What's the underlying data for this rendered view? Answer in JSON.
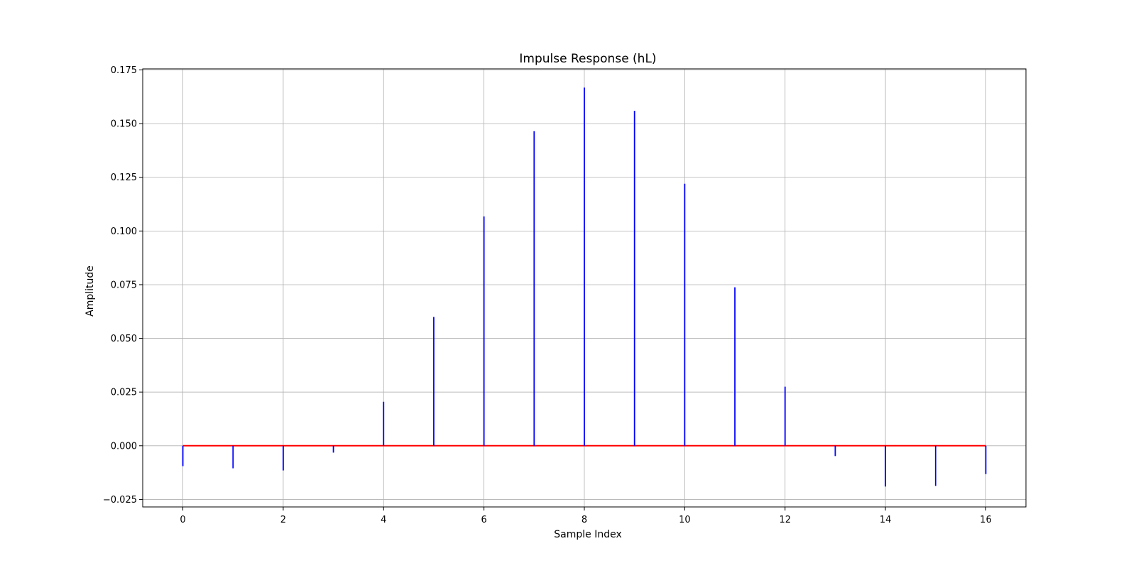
{
  "chart_data": {
    "type": "stem",
    "title": "Impulse Response (hL)",
    "xlabel": "Sample Index",
    "ylabel": "Amplitude",
    "x": [
      0,
      1,
      2,
      3,
      4,
      5,
      6,
      7,
      8,
      9,
      10,
      11,
      12,
      13,
      14,
      15,
      16
    ],
    "values": [
      -0.0095,
      -0.0105,
      -0.0115,
      -0.0032,
      0.0205,
      0.06,
      0.1068,
      0.1465,
      0.1668,
      0.156,
      0.122,
      0.0738,
      0.0275,
      -0.0048,
      -0.019,
      -0.0187,
      -0.0132
    ],
    "xlim": [
      -0.8,
      16.8
    ],
    "ylim": [
      -0.0285,
      0.1755
    ],
    "xticks": [
      0,
      2,
      4,
      6,
      8,
      10,
      12,
      14,
      16
    ],
    "xtick_labels": [
      "0",
      "2",
      "4",
      "6",
      "8",
      "10",
      "12",
      "14",
      "16"
    ],
    "yticks": [
      -0.025,
      0,
      0.025,
      0.05,
      0.075,
      0.1,
      0.125,
      0.15,
      0.175
    ],
    "ytick_labels": [
      "−0.025",
      "0.000",
      "0.025",
      "0.050",
      "0.075",
      "0.100",
      "0.125",
      "0.150",
      "0.175"
    ],
    "grid": true,
    "stem_color": "#0000ff",
    "baseline_color": "#ff0000",
    "grid_color": "#b0b0b0"
  }
}
